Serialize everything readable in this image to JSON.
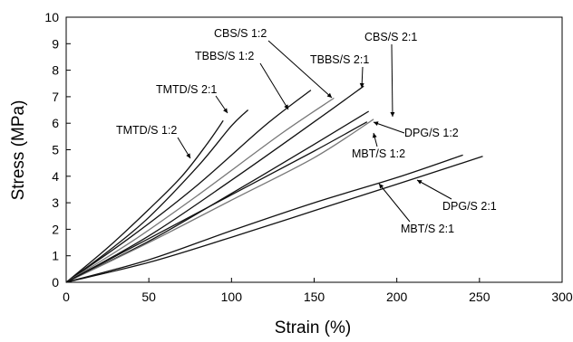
{
  "chart_data": {
    "type": "line",
    "title": "",
    "xlabel": "Strain (%)",
    "ylabel": "Stress (MPa)",
    "xlim": [
      0,
      300
    ],
    "ylim": [
      0,
      10
    ],
    "x_ticks": [
      "0",
      "50",
      "100",
      "150",
      "200",
      "250",
      "300"
    ],
    "y_ticks": [
      "0",
      "1",
      "2",
      "3",
      "4",
      "5",
      "6",
      "7",
      "8",
      "9",
      "10"
    ],
    "grid": false,
    "legend": "none",
    "series": [
      {
        "name": "TMTD/S 1:2",
        "color": "#111111",
        "points": [
          [
            0,
            0
          ],
          [
            25,
            1.3
          ],
          [
            50,
            2.75
          ],
          [
            70,
            4.0
          ],
          [
            85,
            5.2
          ],
          [
            95,
            6.1
          ]
        ]
      },
      {
        "name": "TMTD/S 2:1",
        "color": "#111111",
        "points": [
          [
            0,
            0
          ],
          [
            25,
            1.15
          ],
          [
            50,
            2.45
          ],
          [
            80,
            4.4
          ],
          [
            100,
            5.9
          ],
          [
            110,
            6.5
          ]
        ]
      },
      {
        "name": "TBBS/S 1:2",
        "color": "#111111",
        "points": [
          [
            0,
            0
          ],
          [
            40,
            1.75
          ],
          [
            80,
            3.7
          ],
          [
            120,
            5.9
          ],
          [
            148,
            7.25
          ]
        ]
      },
      {
        "name": "CBS/S 1:2",
        "color": "#777777",
        "points": [
          [
            0,
            0
          ],
          [
            40,
            1.55
          ],
          [
            80,
            3.3
          ],
          [
            130,
            5.6
          ],
          [
            162,
            6.95
          ]
        ]
      },
      {
        "name": "TBBS/S 2:1",
        "color": "#111111",
        "points": [
          [
            0,
            0
          ],
          [
            50,
            1.75
          ],
          [
            100,
            3.85
          ],
          [
            150,
            6.05
          ],
          [
            180,
            7.4
          ]
        ]
      },
      {
        "name": "CBS/S 2:1",
        "color": "#111111",
        "points": [
          [
            0,
            0
          ],
          [
            50,
            1.55
          ],
          [
            100,
            3.35
          ],
          [
            150,
            5.2
          ],
          [
            183,
            6.45
          ]
        ]
      },
      {
        "name": "DPG/S 1:2",
        "color": "#777777",
        "points": [
          [
            0,
            0
          ],
          [
            50,
            1.5
          ],
          [
            100,
            3.1
          ],
          [
            150,
            4.7
          ],
          [
            186,
            6.15
          ]
        ]
      },
      {
        "name": "MBT/S 1:2",
        "color": "#111111",
        "points": [
          [
            0,
            0
          ],
          [
            50,
            1.65
          ],
          [
            100,
            3.3
          ],
          [
            150,
            4.95
          ],
          [
            182,
            6.05
          ]
        ]
      },
      {
        "name": "MBT/S 2:1",
        "color": "#111111",
        "points": [
          [
            0,
            0
          ],
          [
            50,
            0.85
          ],
          [
            100,
            1.95
          ],
          [
            150,
            3.0
          ],
          [
            200,
            3.95
          ],
          [
            240,
            4.8
          ]
        ]
      },
      {
        "name": "DPG/S 2:1",
        "color": "#111111",
        "points": [
          [
            0,
            0
          ],
          [
            50,
            0.75
          ],
          [
            100,
            1.7
          ],
          [
            150,
            2.7
          ],
          [
            200,
            3.7
          ],
          [
            252,
            4.75
          ]
        ]
      }
    ],
    "annotations": [
      {
        "text": "TMTD/S 1:2",
        "series": "TMTD/S 1:2"
      },
      {
        "text": "TMTD/S 2:1",
        "series": "TMTD/S 2:1"
      },
      {
        "text": "TBBS/S 1:2",
        "series": "TBBS/S 1:2"
      },
      {
        "text": "CBS/S 1:2",
        "series": "CBS/S 1:2"
      },
      {
        "text": "TBBS/S 2:1",
        "series": "TBBS/S 2:1"
      },
      {
        "text": "CBS/S 2:1",
        "series": "CBS/S 2:1"
      },
      {
        "text": "DPG/S 1:2",
        "series": "DPG/S 1:2"
      },
      {
        "text": "MBT/S 1:2",
        "series": "MBT/S 1:2"
      },
      {
        "text": "DPG/S 2:1",
        "series": "DPG/S 2:1"
      },
      {
        "text": "MBT/S 2:1",
        "series": "MBT/S 2:1"
      }
    ]
  }
}
